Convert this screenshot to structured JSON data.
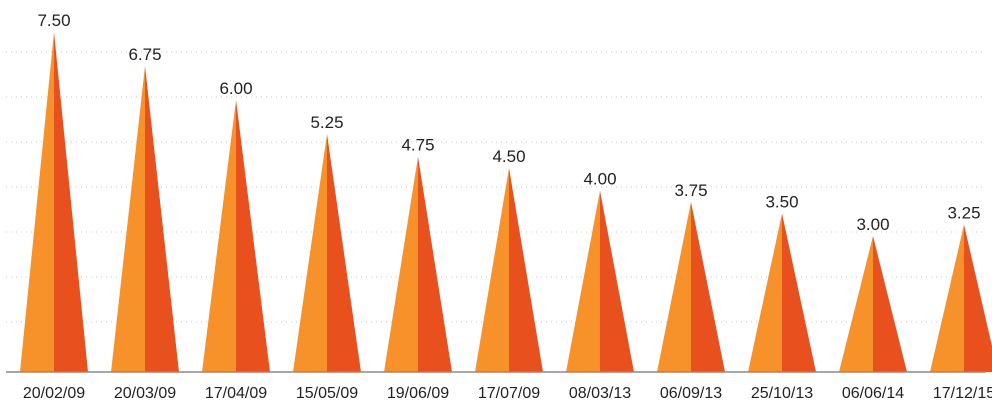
{
  "chart_data": {
    "type": "bar",
    "title": "",
    "xlabel": "",
    "ylabel": "",
    "categories": [
      "20/02/09",
      "20/03/09",
      "17/04/09",
      "15/05/09",
      "19/06/09",
      "17/07/09",
      "08/03/13",
      "06/09/13",
      "25/10/13",
      "06/06/14",
      "17/12/15"
    ],
    "value_labels": [
      "7.50",
      "6.75",
      "6.00",
      "5.25",
      "4.75",
      "4.50",
      "4.00",
      "3.75",
      "3.50",
      "3.00",
      "3.25"
    ],
    "values": [
      7.5,
      6.75,
      6.0,
      5.25,
      4.75,
      4.5,
      4.0,
      3.75,
      3.5,
      3.0,
      3.25
    ],
    "ylim": [
      0,
      8
    ],
    "grid": true,
    "legend": "none",
    "mark_shape": "triangle",
    "colors": {
      "light": "#f7922a",
      "dark": "#e8501e",
      "grid": "#c8c8c8",
      "baseline": "#8a8a8a",
      "text": "#222222"
    }
  }
}
